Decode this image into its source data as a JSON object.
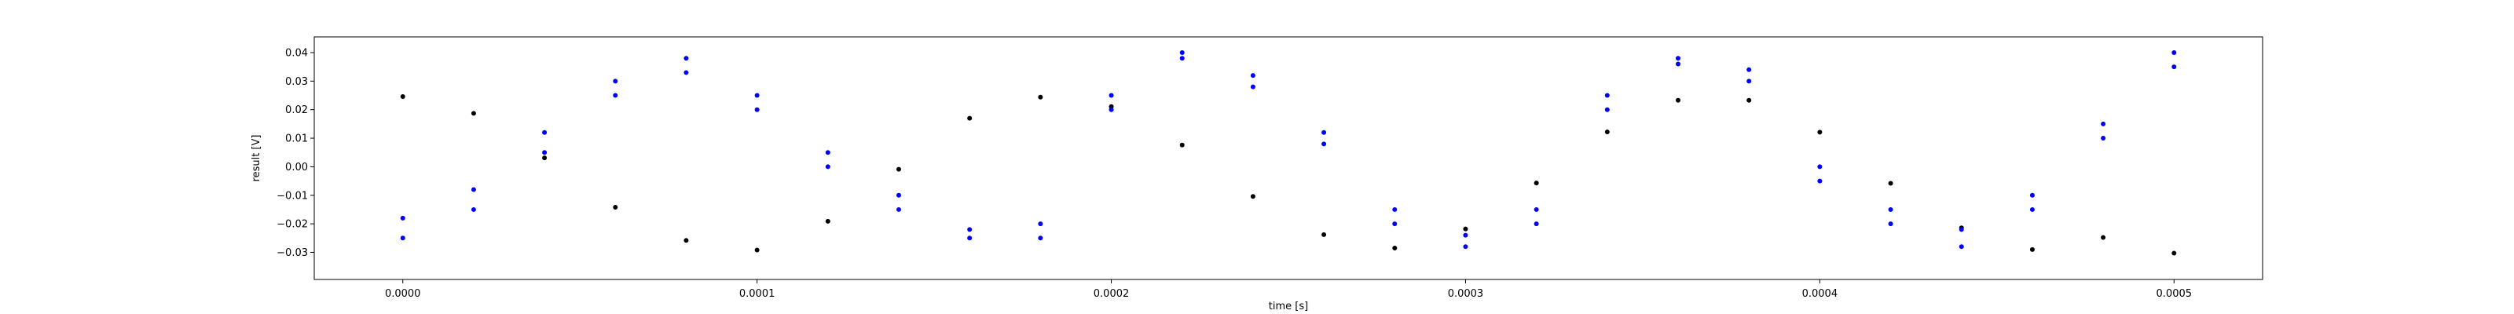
{
  "chart_data": {
    "type": "scatter",
    "title": "",
    "xlabel": "time [s]",
    "ylabel": "result [V]",
    "xlim": [
      -2.5e-05,
      0.000525
    ],
    "ylim": [
      -0.0395,
      0.0455
    ],
    "grid": false,
    "legend": "none",
    "xticks": [
      0.0,
      0.0001,
      0.0002,
      0.0003,
      0.0004,
      0.0005
    ],
    "xtick_labels": [
      "0.0000",
      "0.0001",
      "0.0002",
      "0.0003",
      "0.0004",
      "0.0005"
    ],
    "yticks": [
      -0.03,
      -0.02,
      -0.01,
      0.0,
      0.01,
      0.02,
      0.03,
      0.04
    ],
    "ytick_labels": [
      "−0.03",
      "−0.02",
      "−0.01",
      "0.00",
      "0.01",
      "0.02",
      "0.03",
      "0.04"
    ],
    "series": [
      {
        "color": "#000000",
        "x": [
          0.0,
          2e-05,
          4e-05,
          6e-05,
          8e-05,
          0.0001,
          0.00012,
          0.00014,
          0.00016,
          0.00018,
          0.0002,
          0.00022,
          0.00024,
          0.00026,
          0.00028,
          0.0003,
          0.00032,
          0.00034,
          0.00036,
          0.00038,
          0.0004,
          0.00042,
          0.00044,
          0.00046,
          0.00048,
          0.0005
        ],
        "y": [
          0.0246,
          0.0187,
          0.0031,
          -0.0142,
          -0.0258,
          -0.0292,
          -0.0191,
          -0.0009,
          0.017,
          0.0244,
          0.0211,
          0.0076,
          -0.0104,
          -0.0238,
          -0.0285,
          -0.0218,
          -0.0057,
          0.0122,
          0.0233,
          0.0233,
          0.0121,
          -0.0058,
          -0.0214,
          -0.029,
          -0.0248,
          -0.0303
        ]
      },
      {
        "color": "#0000ff",
        "x": [
          0.0,
          2e-05,
          4e-05,
          6e-05,
          8e-05,
          0.0001,
          0.00012,
          0.00014,
          0.00016,
          0.00018,
          0.0002,
          0.00022,
          0.00024,
          0.00026,
          0.00028,
          0.0003,
          0.00032,
          0.00034,
          0.00036,
          0.00038,
          0.0004,
          0.00042,
          0.00044,
          0.00046,
          0.00048,
          0.0005
        ],
        "y": [
          -0.025,
          -0.015,
          0.005,
          0.025,
          0.033,
          0.02,
          0.0,
          -0.015,
          -0.025,
          -0.02,
          0.025,
          0.038,
          0.028,
          0.008,
          -0.02,
          -0.028,
          -0.015,
          0.025,
          0.038,
          0.03,
          -0.005,
          -0.02,
          -0.028,
          -0.015,
          0.01,
          0.035
        ]
      },
      {
        "color": "#0000ff",
        "x": [
          0.0,
          2e-05,
          4e-05,
          6e-05,
          8e-05,
          0.0001,
          0.00012,
          0.00014,
          0.00016,
          0.00018,
          0.0002,
          0.00022,
          0.00024,
          0.00026,
          0.00028,
          0.0003,
          0.00032,
          0.00034,
          0.00036,
          0.00038,
          0.0004,
          0.00042,
          0.00044,
          0.00046,
          0.00048,
          0.0005
        ],
        "y": [
          -0.018,
          -0.008,
          0.012,
          0.03,
          0.038,
          0.025,
          0.005,
          -0.01,
          -0.022,
          -0.025,
          0.02,
          0.04,
          0.032,
          0.012,
          -0.015,
          -0.024,
          -0.02,
          0.02,
          0.036,
          0.034,
          0.0,
          -0.015,
          -0.022,
          -0.01,
          0.015,
          0.04
        ]
      }
    ]
  }
}
